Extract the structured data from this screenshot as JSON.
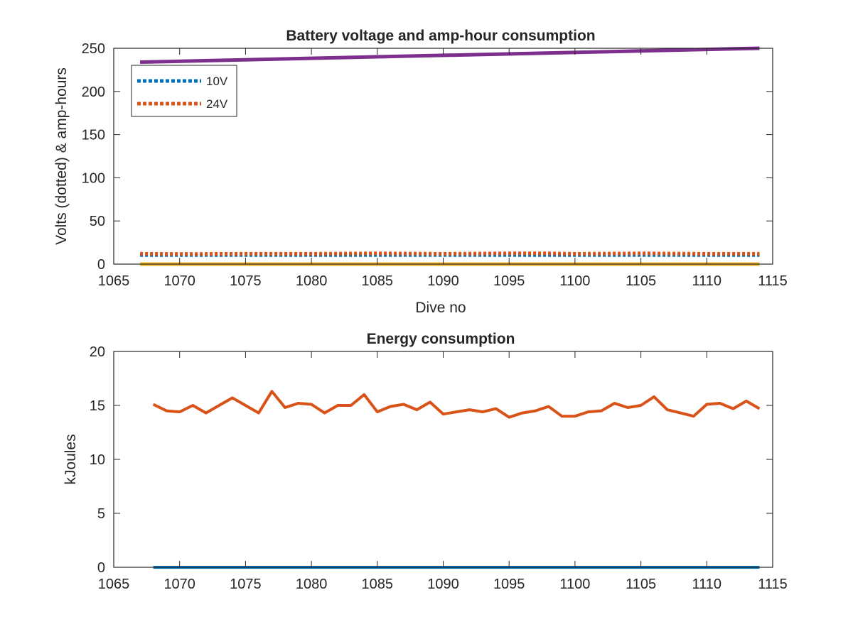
{
  "chart_data": [
    {
      "type": "line",
      "title": "Battery voltage and amp-hour consumption",
      "xlabel": "Dive no",
      "ylabel": "Volts (dotted) & amp-hours",
      "xlim": [
        1065,
        1115
      ],
      "ylim": [
        0,
        250
      ],
      "xticks": [
        1065,
        1070,
        1075,
        1080,
        1085,
        1090,
        1095,
        1100,
        1105,
        1110,
        1115
      ],
      "yticks": [
        0,
        50,
        100,
        150,
        200,
        250
      ],
      "grid": false,
      "legend_position": "top-left",
      "series": [
        {
          "name": "10V",
          "style": "dotted",
          "color": "#0072BD",
          "x": [
            1067,
            1114
          ],
          "y": [
            10.5,
            10.5
          ],
          "in_legend": true
        },
        {
          "name": "24V",
          "style": "dotted",
          "color": "#D95319",
          "x": [
            1067,
            1070,
            1075,
            1080,
            1085,
            1090,
            1095,
            1098,
            1100,
            1105,
            1110,
            1114
          ],
          "y": [
            12,
            11.8,
            12,
            12,
            12.5,
            12,
            12.5,
            12.5,
            12,
            12.5,
            12,
            12
          ],
          "in_legend": true
        },
        {
          "name": "",
          "style": "solid",
          "color": "#EDB120",
          "x": [
            1067,
            1114
          ],
          "y": [
            0,
            0
          ],
          "in_legend": false
        },
        {
          "name": "",
          "style": "solid",
          "color": "#7E2F8E",
          "x": [
            1067,
            1114
          ],
          "y": [
            234,
            250
          ],
          "in_legend": false
        }
      ]
    },
    {
      "type": "line",
      "title": "Energy consumption",
      "xlabel": "",
      "ylabel": "kJoules",
      "xlim": [
        1065,
        1115
      ],
      "ylim": [
        0,
        20
      ],
      "xticks": [
        1065,
        1070,
        1075,
        1080,
        1085,
        1090,
        1095,
        1100,
        1105,
        1110,
        1115
      ],
      "yticks": [
        0,
        5,
        10,
        15,
        20
      ],
      "grid": false,
      "series": [
        {
          "name": "",
          "style": "solid",
          "color": "#D95319",
          "x": [
            1068,
            1069,
            1070,
            1071,
            1072,
            1073,
            1074,
            1075,
            1076,
            1077,
            1078,
            1079,
            1080,
            1081,
            1082,
            1083,
            1084,
            1085,
            1086,
            1087,
            1088,
            1089,
            1090,
            1091,
            1092,
            1093,
            1094,
            1095,
            1096,
            1097,
            1098,
            1099,
            1100,
            1101,
            1102,
            1103,
            1104,
            1105,
            1106,
            1107,
            1108,
            1109,
            1110,
            1111,
            1112,
            1113,
            1114
          ],
          "y": [
            15.1,
            14.5,
            14.4,
            15.0,
            14.3,
            15.0,
            15.7,
            15.0,
            14.3,
            16.3,
            14.8,
            15.2,
            15.1,
            14.3,
            15.0,
            15.0,
            16.0,
            14.4,
            14.9,
            15.1,
            14.6,
            15.3,
            14.2,
            14.4,
            14.6,
            14.4,
            14.7,
            13.9,
            14.3,
            14.5,
            14.9,
            14.0,
            14.0,
            14.4,
            14.5,
            15.2,
            14.8,
            15.0,
            15.8,
            14.6,
            14.3,
            14.0,
            15.1,
            15.2,
            14.7,
            15.4,
            14.7
          ]
        },
        {
          "name": "",
          "style": "solid",
          "color": "#0072BD",
          "x": [
            1068,
            1114
          ],
          "y": [
            0,
            0
          ]
        }
      ]
    }
  ]
}
